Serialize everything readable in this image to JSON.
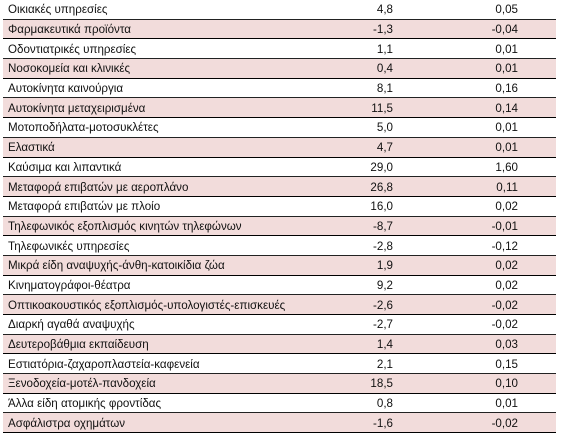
{
  "rows": [
    {
      "name": "Οικιακές υπηρεσίες",
      "value": "4,8",
      "share": "0,05",
      "shaded": false
    },
    {
      "name": "Φαρμακευτικά προϊόντα",
      "value": "-1,3",
      "share": "-0,04",
      "shaded": true
    },
    {
      "name": "Οδοντιατρικές υπηρεσίες",
      "value": "1,1",
      "share": "0,01",
      "shaded": false
    },
    {
      "name": "Νοσοκομεία και κλινικές",
      "value": "0,4",
      "share": "0,01",
      "shaded": true
    },
    {
      "name": "Αυτοκίνητα καινούργια",
      "value": "8,1",
      "share": "0,16",
      "shaded": false
    },
    {
      "name": "Αυτοκίνητα μεταχειρισμένα",
      "value": "11,5",
      "share": "0,14",
      "shaded": true
    },
    {
      "name": "Μοτοποδήλατα-μοτοσυκλέτες",
      "value": "5,0",
      "share": "0,01",
      "shaded": false
    },
    {
      "name": "Ελαστικά",
      "value": "4,7",
      "share": "0,01",
      "shaded": true
    },
    {
      "name": "Καύσιμα και λιπαντικά",
      "value": "29,0",
      "share": "1,60",
      "shaded": false
    },
    {
      "name": "Μεταφορά επιβατών με αεροπλάνο",
      "value": "26,8",
      "share": "0,11",
      "shaded": true
    },
    {
      "name": "Μεταφορά επιβατών με πλοίο",
      "value": "16,0",
      "share": "0,02",
      "shaded": false
    },
    {
      "name": "Τηλεφωνικός εξοπλισμός κινητών τηλεφώνων",
      "value": "-8,7",
      "share": "-0,01",
      "shaded": true
    },
    {
      "name": "Τηλεφωνικές υπηρεσίες",
      "value": "-2,8",
      "share": "-0,12",
      "shaded": false
    },
    {
      "name": "Μικρά είδη αναψυχής-άνθη-κατοικίδια ζώα",
      "value": "1,9",
      "share": "0,02",
      "shaded": true
    },
    {
      "name": "Κινηματογράφοι-θέατρα",
      "value": "9,2",
      "share": "0,02",
      "shaded": false
    },
    {
      "name": "Οπτικοακουστικός εξοπλισμός-υπολογιστές-επισκευές",
      "value": "-2,6",
      "share": "-0,02",
      "shaded": true
    },
    {
      "name": "Διαρκή αγαθά αναψυχής",
      "value": "-2,7",
      "share": "-0,02",
      "shaded": false
    },
    {
      "name": "Δευτεροβάθμια εκπαίδευση",
      "value": "1,4",
      "share": "0,03",
      "shaded": true
    },
    {
      "name": "Εστιατόρια-ζαχαροπλαστεία-καφενεία",
      "value": "2,1",
      "share": "0,15",
      "shaded": false
    },
    {
      "name": "Ξενοδοχεία-μοτέλ-πανδοχεία",
      "value": "18,5",
      "share": "0,10",
      "shaded": true
    },
    {
      "name": "Άλλα είδη ατομικής φροντίδας",
      "value": "0,8",
      "share": "0,01",
      "shaded": false
    },
    {
      "name": "Ασφάλιστρα οχημάτων",
      "value": "-1,6",
      "share": "-0,02",
      "shaded": true
    }
  ]
}
